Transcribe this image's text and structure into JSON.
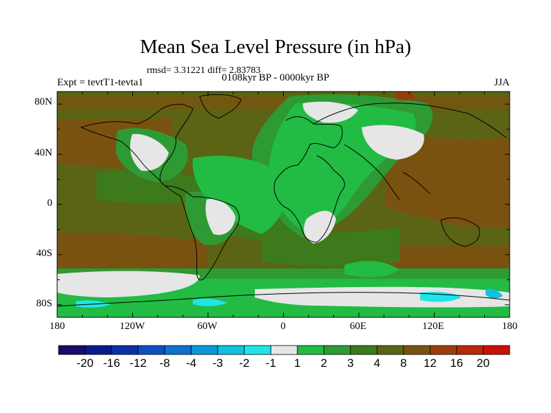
{
  "title": "Mean Sea Level Pressure (in hPa)",
  "stats_line": "rmsd= 3.31221 diff= 2.83783",
  "subtitle": "0108kyr BP - 0000kyr BP",
  "experiment": "Expt = tevtT1-tevta1",
  "season": "JJA",
  "map": {
    "projection": "cylindrical equidistant",
    "lon_range": [
      -180,
      180
    ],
    "lat_range": [
      -90,
      90
    ],
    "y_ticks": [
      "80N",
      "40N",
      "0",
      "40S",
      "80S"
    ],
    "x_ticks": [
      "180",
      "120W",
      "60W",
      "0",
      "60E",
      "120E",
      "180"
    ]
  },
  "colorbar": {
    "labels": [
      "-20",
      "-16",
      "-12",
      "-8",
      "-4",
      "-3",
      "-2",
      "-1",
      "1",
      "2",
      "3",
      "4",
      "8",
      "12",
      "16",
      "20"
    ],
    "colors": [
      "#1a0a6b",
      "#0a1a8c",
      "#0c2fa8",
      "#0d4fbf",
      "#0a72d0",
      "#0a98d8",
      "#12c0e0",
      "#20e4e8",
      "#e6e6e6",
      "#22bb44",
      "#2e9a34",
      "#3c7a1c",
      "#5a6414",
      "#7a5210",
      "#9a3e0c",
      "#b8280a",
      "#c81208"
    ]
  }
}
